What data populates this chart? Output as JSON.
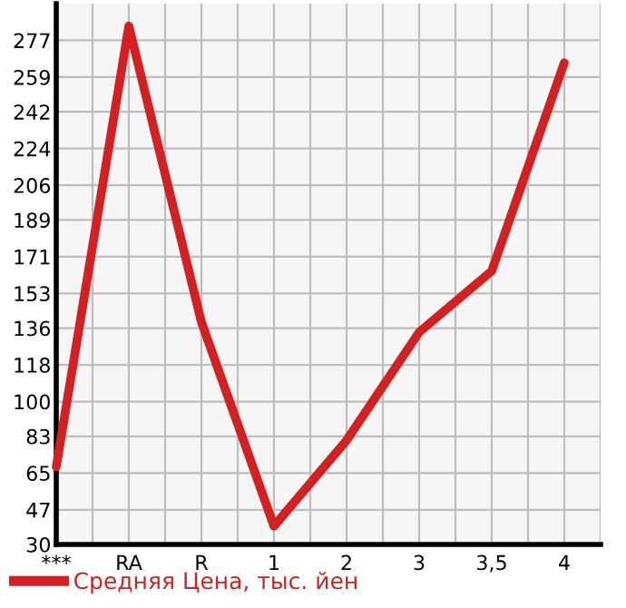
{
  "chart_data": {
    "type": "line",
    "categories": [
      "***",
      "RA",
      "R",
      "1",
      "2",
      "3",
      "3,5",
      "4"
    ],
    "series": [
      {
        "name": "Средняя Цена, тыс. йен",
        "color": "#d42020",
        "values": [
          68,
          284,
          139,
          39,
          81,
          134,
          164,
          266
        ]
      }
    ],
    "ylim": [
      30,
      295
    ],
    "yticks": [
      30,
      47,
      65,
      83,
      100,
      118,
      136,
      153,
      171,
      189,
      206,
      224,
      242,
      259,
      277
    ],
    "grid": true,
    "legend": "bottom",
    "marker": "none",
    "line_style": "solid"
  }
}
